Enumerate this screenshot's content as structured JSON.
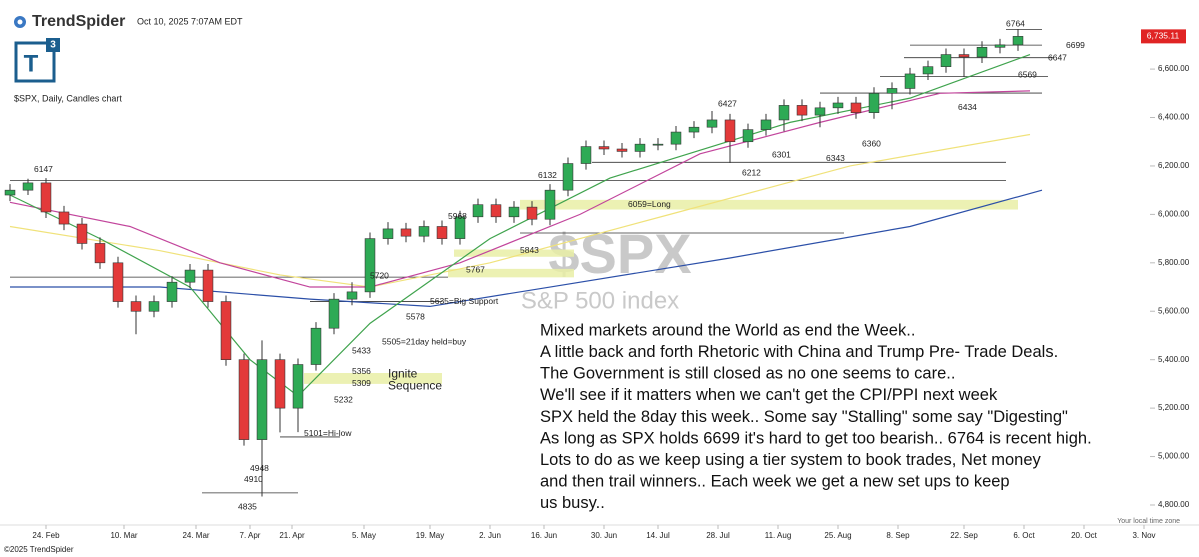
{
  "brand": "TrendSpider",
  "timestamp": "Oct 10, 2025 7:07AM EDT",
  "logo": {
    "letter": "T",
    "superscript": "3"
  },
  "footer": "©2025 TrendSpider",
  "timezone_note": "Your local time zone",
  "chart_data": {
    "type": "candlestick",
    "title": "$SPX, Daily, Candles chart",
    "watermark": "$SPX",
    "watermark_subtitle": "S&P 500 index",
    "xlim": [
      0,
      195
    ],
    "ylim": [
      4738,
      6844
    ],
    "yticks": [
      {
        "value": 4800,
        "label": "4,800.00"
      },
      {
        "value": 5000,
        "label": "5,000.00"
      },
      {
        "value": 5200,
        "label": "5,200.00"
      },
      {
        "value": 5400,
        "label": "5,400.00"
      },
      {
        "value": 5600,
        "label": "5,600.00"
      },
      {
        "value": 5800,
        "label": "5,800.00"
      },
      {
        "value": 6000,
        "label": "6,000.00"
      },
      {
        "value": 6200,
        "label": "6,200.00"
      },
      {
        "value": 6400,
        "label": "6,400.00"
      },
      {
        "value": 6600,
        "label": "6,600.00"
      }
    ],
    "xticks": [
      {
        "value": 6,
        "label": "24. Feb"
      },
      {
        "value": 19,
        "label": "10. Mar"
      },
      {
        "value": 31,
        "label": "24. Mar"
      },
      {
        "value": 40,
        "label": "7. Apr"
      },
      {
        "value": 47,
        "label": "21. Apr"
      },
      {
        "value": 59,
        "label": "5. May"
      },
      {
        "value": 70,
        "label": "19. May"
      },
      {
        "value": 80,
        "label": "2. Jun"
      },
      {
        "value": 89,
        "label": "16. Jun"
      },
      {
        "value": 99,
        "label": "30. Jun"
      },
      {
        "value": 108,
        "label": "14. Jul"
      },
      {
        "value": 118,
        "label": "28. Jul"
      },
      {
        "value": 128,
        "label": "11. Aug"
      },
      {
        "value": 138,
        "label": "25. Aug"
      },
      {
        "value": 148,
        "label": "8. Sep"
      },
      {
        "value": 159,
        "label": "22. Sep"
      },
      {
        "value": 169,
        "label": "6. Oct"
      },
      {
        "value": 179,
        "label": "20. Oct"
      },
      {
        "value": 189,
        "label": "3. Nov"
      }
    ],
    "up_color": "#2eaa55",
    "down_color": "#e33a3a",
    "x": [
      0,
      3,
      6,
      9,
      12,
      15,
      18,
      21,
      24,
      27,
      30,
      33,
      36,
      39,
      42,
      45,
      48,
      51,
      54,
      57,
      60,
      63,
      66,
      69,
      72,
      75,
      78,
      81,
      84,
      87,
      90,
      93,
      96,
      99,
      102,
      105,
      108,
      111,
      114,
      117,
      120,
      123,
      126,
      129,
      132,
      135,
      138,
      141,
      144,
      147,
      150,
      153,
      156,
      159,
      162,
      165,
      168
    ],
    "open": [
      6080,
      6100,
      6130,
      6010,
      5960,
      5880,
      5800,
      5640,
      5600,
      5640,
      5720,
      5770,
      5640,
      5400,
      5070,
      5400,
      5200,
      5380,
      5530,
      5650,
      5680,
      5900,
      5940,
      5910,
      5950,
      5900,
      5990,
      6040,
      5990,
      6030,
      5980,
      6100,
      6210,
      6280,
      6270,
      6260,
      6290,
      6290,
      6340,
      6360,
      6390,
      6300,
      6350,
      6390,
      6450,
      6410,
      6440,
      6460,
      6420,
      6500,
      6520,
      6580,
      6610,
      6660,
      6650,
      6690,
      6700
    ],
    "high": [
      6125,
      6147,
      6150,
      6035,
      5985,
      5905,
      5825,
      5665,
      5665,
      5745,
      5795,
      5795,
      5665,
      5425,
      5480,
      5425,
      5405,
      5555,
      5675,
      5720,
      5925,
      5968,
      5965,
      5975,
      5975,
      6015,
      6065,
      6065,
      6055,
      6055,
      6125,
      6235,
      6305,
      6305,
      6295,
      6315,
      6315,
      6365,
      6385,
      6427,
      6415,
      6375,
      6415,
      6475,
      6475,
      6465,
      6485,
      6485,
      6525,
      6545,
      6605,
      6635,
      6685,
      6685,
      6715,
      6725,
      6764
    ],
    "low": [
      6055,
      6080,
      5985,
      5935,
      5855,
      5775,
      5615,
      5505,
      5575,
      5615,
      5695,
      5615,
      5375,
      5045,
      4835,
      5100,
      5101,
      5355,
      5505,
      5625,
      5655,
      5875,
      5885,
      5885,
      5875,
      5875,
      5965,
      5965,
      5965,
      5955,
      5955,
      6075,
      6185,
      6245,
      6235,
      6235,
      6265,
      6265,
      6315,
      6335,
      6212,
      6275,
      6325,
      6343,
      6385,
      6360,
      6415,
      6395,
      6395,
      6434,
      6495,
      6555,
      6585,
      6569,
      6625,
      6665,
      6675
    ],
    "close": [
      6100,
      6130,
      6010,
      5960,
      5880,
      5800,
      5640,
      5600,
      5640,
      5720,
      5770,
      5640,
      5400,
      5070,
      5400,
      5200,
      5380,
      5530,
      5650,
      5680,
      5900,
      5940,
      5910,
      5950,
      5900,
      5990,
      6040,
      5990,
      6030,
      5980,
      6100,
      6210,
      6280,
      6270,
      6260,
      6290,
      6290,
      6340,
      6360,
      6390,
      6300,
      6350,
      6390,
      6450,
      6410,
      6440,
      6460,
      6420,
      6500,
      6520,
      6580,
      6610,
      6660,
      6650,
      6690,
      6700,
      6735.11
    ],
    "last_price": {
      "value": 6735.11,
      "label": "6,735.11"
    },
    "overlays": [
      {
        "color": "#2b4fa8",
        "x": [
          0,
          25,
          50,
          70,
          90,
          120,
          150,
          172
        ],
        "values": [
          5700,
          5700,
          5650,
          5620,
          5700,
          5820,
          5950,
          6100
        ]
      },
      {
        "color": "#f0e27a",
        "x": [
          0,
          25,
          45,
          60,
          80,
          110,
          140,
          170
        ],
        "values": [
          5950,
          5850,
          5750,
          5700,
          5800,
          6000,
          6200,
          6330
        ]
      },
      {
        "color": "#c2459c",
        "x": [
          0,
          20,
          35,
          50,
          60,
          75,
          95,
          115,
          135,
          155,
          170
        ],
        "values": [
          6050,
          5950,
          5800,
          5700,
          5700,
          5800,
          6000,
          6250,
          6380,
          6500,
          6510
        ]
      },
      {
        "color": "#3fa34d",
        "x": [
          0,
          15,
          30,
          40,
          48,
          60,
          80,
          100,
          130,
          150,
          170
        ],
        "values": [
          6080,
          5900,
          5700,
          5400,
          5250,
          5550,
          5900,
          6150,
          6380,
          6480,
          6660
        ]
      }
    ],
    "bands": [
      {
        "from": 85,
        "to": 168,
        "low": 6020,
        "high": 6060
      },
      {
        "from": 74,
        "to": 94,
        "low": 5825,
        "high": 5855
      },
      {
        "from": 73,
        "to": 94,
        "low": 5740,
        "high": 5775
      },
      {
        "from": 49,
        "to": 72,
        "low": 5300,
        "high": 5345
      }
    ],
    "levels": [
      {
        "value": 6140,
        "from": 0,
        "to": 166
      },
      {
        "value": 6215,
        "from": 97,
        "to": 166
      },
      {
        "value": 5741,
        "from": 0,
        "to": 73
      },
      {
        "value": 5923,
        "from": 85,
        "to": 139
      },
      {
        "value": 6699,
        "from": 150,
        "to": 172
      },
      {
        "value": 6647,
        "from": 149,
        "to": 174
      },
      {
        "value": 6569,
        "from": 145,
        "to": 173
      },
      {
        "value": 6501,
        "from": 135,
        "to": 172
      },
      {
        "value": 6764,
        "from": 166,
        "to": 172
      },
      {
        "value": 4850,
        "from": 32,
        "to": 48
      },
      {
        "value": 5081,
        "from": 45,
        "to": 55
      },
      {
        "value": 5640,
        "from": 50,
        "to": 72
      }
    ],
    "annotations": [
      {
        "text": "6147",
        "x": 4,
        "y": 6185
      },
      {
        "text": "5968",
        "x": 73,
        "y": 5990
      },
      {
        "text": "6132",
        "x": 88,
        "y": 6160
      },
      {
        "text": "5720",
        "x": 60,
        "y": 5745
      },
      {
        "text": "5635=Big Support",
        "x": 70,
        "y": 5640
      },
      {
        "text": "5578",
        "x": 66,
        "y": 5576
      },
      {
        "text": "5505=21day held=buy",
        "x": 62,
        "y": 5473
      },
      {
        "text": "5433",
        "x": 57,
        "y": 5435
      },
      {
        "text": "5356",
        "x": 57,
        "y": 5350
      },
      {
        "text": "5309",
        "x": 57,
        "y": 5300
      },
      {
        "text": "5232",
        "x": 54,
        "y": 5232
      },
      {
        "text": "5101=Hi-low",
        "x": 49,
        "y": 5095
      },
      {
        "text": "4948",
        "x": 40,
        "y": 4950
      },
      {
        "text": "4910",
        "x": 39,
        "y": 4905
      },
      {
        "text": "4835",
        "x": 38,
        "y": 4790
      },
      {
        "text": "5843",
        "x": 85,
        "y": 5850
      },
      {
        "text": "5767",
        "x": 76,
        "y": 5770
      },
      {
        "text": "6059=Long",
        "x": 103,
        "y": 6040
      },
      {
        "text": "6427",
        "x": 118,
        "y": 6455
      },
      {
        "text": "6301",
        "x": 127,
        "y": 6245
      },
      {
        "text": "6212",
        "x": 122,
        "y": 6170
      },
      {
        "text": "6343",
        "x": 136,
        "y": 6230
      },
      {
        "text": "6360",
        "x": 142,
        "y": 6290
      },
      {
        "text": "6434",
        "x": 158,
        "y": 6440
      },
      {
        "text": "6569",
        "x": 168,
        "y": 6575
      },
      {
        "text": "6647",
        "x": 173,
        "y": 6645
      },
      {
        "text": "6699",
        "x": 176,
        "y": 6697
      },
      {
        "text": "6764",
        "x": 166,
        "y": 6785
      },
      {
        "text": "Ignite",
        "x": 63,
        "y": 5340
      },
      {
        "text": "Sequence",
        "x": 63,
        "y": 5290
      }
    ],
    "commentary": [
      "Mixed markets around the World as end the Week..",
      "A little back and forth Rhetoric with China and Trump Pre- Trade Deals.",
      "The Government is still closed as no one seems to care..",
      "We'll see if it matters when we can't get the CPI/PPI next week",
      "SPX held the 8day this week.. Some say \"Stalling\" some say \"Digesting\"",
      "As long as SPX holds 6699 it's hard to get too bearish.. 6764 is recent high.",
      "Lots to do as we keep using a tier system to book trades, Net money",
      "and then trail winners.. Each week we get a new set ups to keep",
      "us busy.."
    ]
  }
}
